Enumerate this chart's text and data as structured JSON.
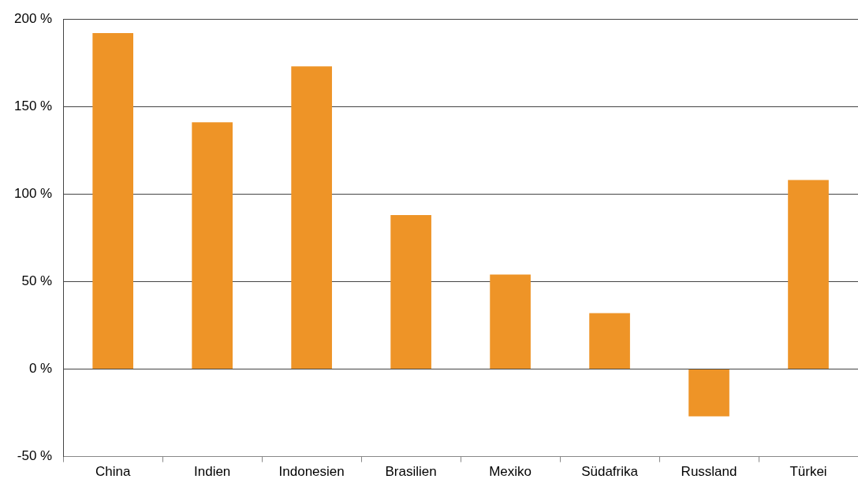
{
  "chart_data": {
    "type": "bar",
    "categories": [
      "China",
      "Indien",
      "Indonesien",
      "Brasilien",
      "Mexiko",
      "Südafrika",
      "Russland",
      "Türkei"
    ],
    "values": [
      192,
      141,
      173,
      88,
      54,
      32,
      -27,
      108
    ],
    "color": "#ee9427",
    "ylim": [
      -50,
      200
    ],
    "yticks": [
      {
        "value": -50,
        "label": "-50 %"
      },
      {
        "value": 0,
        "label": "0 %"
      },
      {
        "value": 50,
        "label": "50 %"
      },
      {
        "value": 100,
        "label": "100 %"
      },
      {
        "value": 150,
        "label": "150 %"
      },
      {
        "value": 200,
        "label": "200 %"
      }
    ],
    "grid": "y",
    "legend": false
  }
}
